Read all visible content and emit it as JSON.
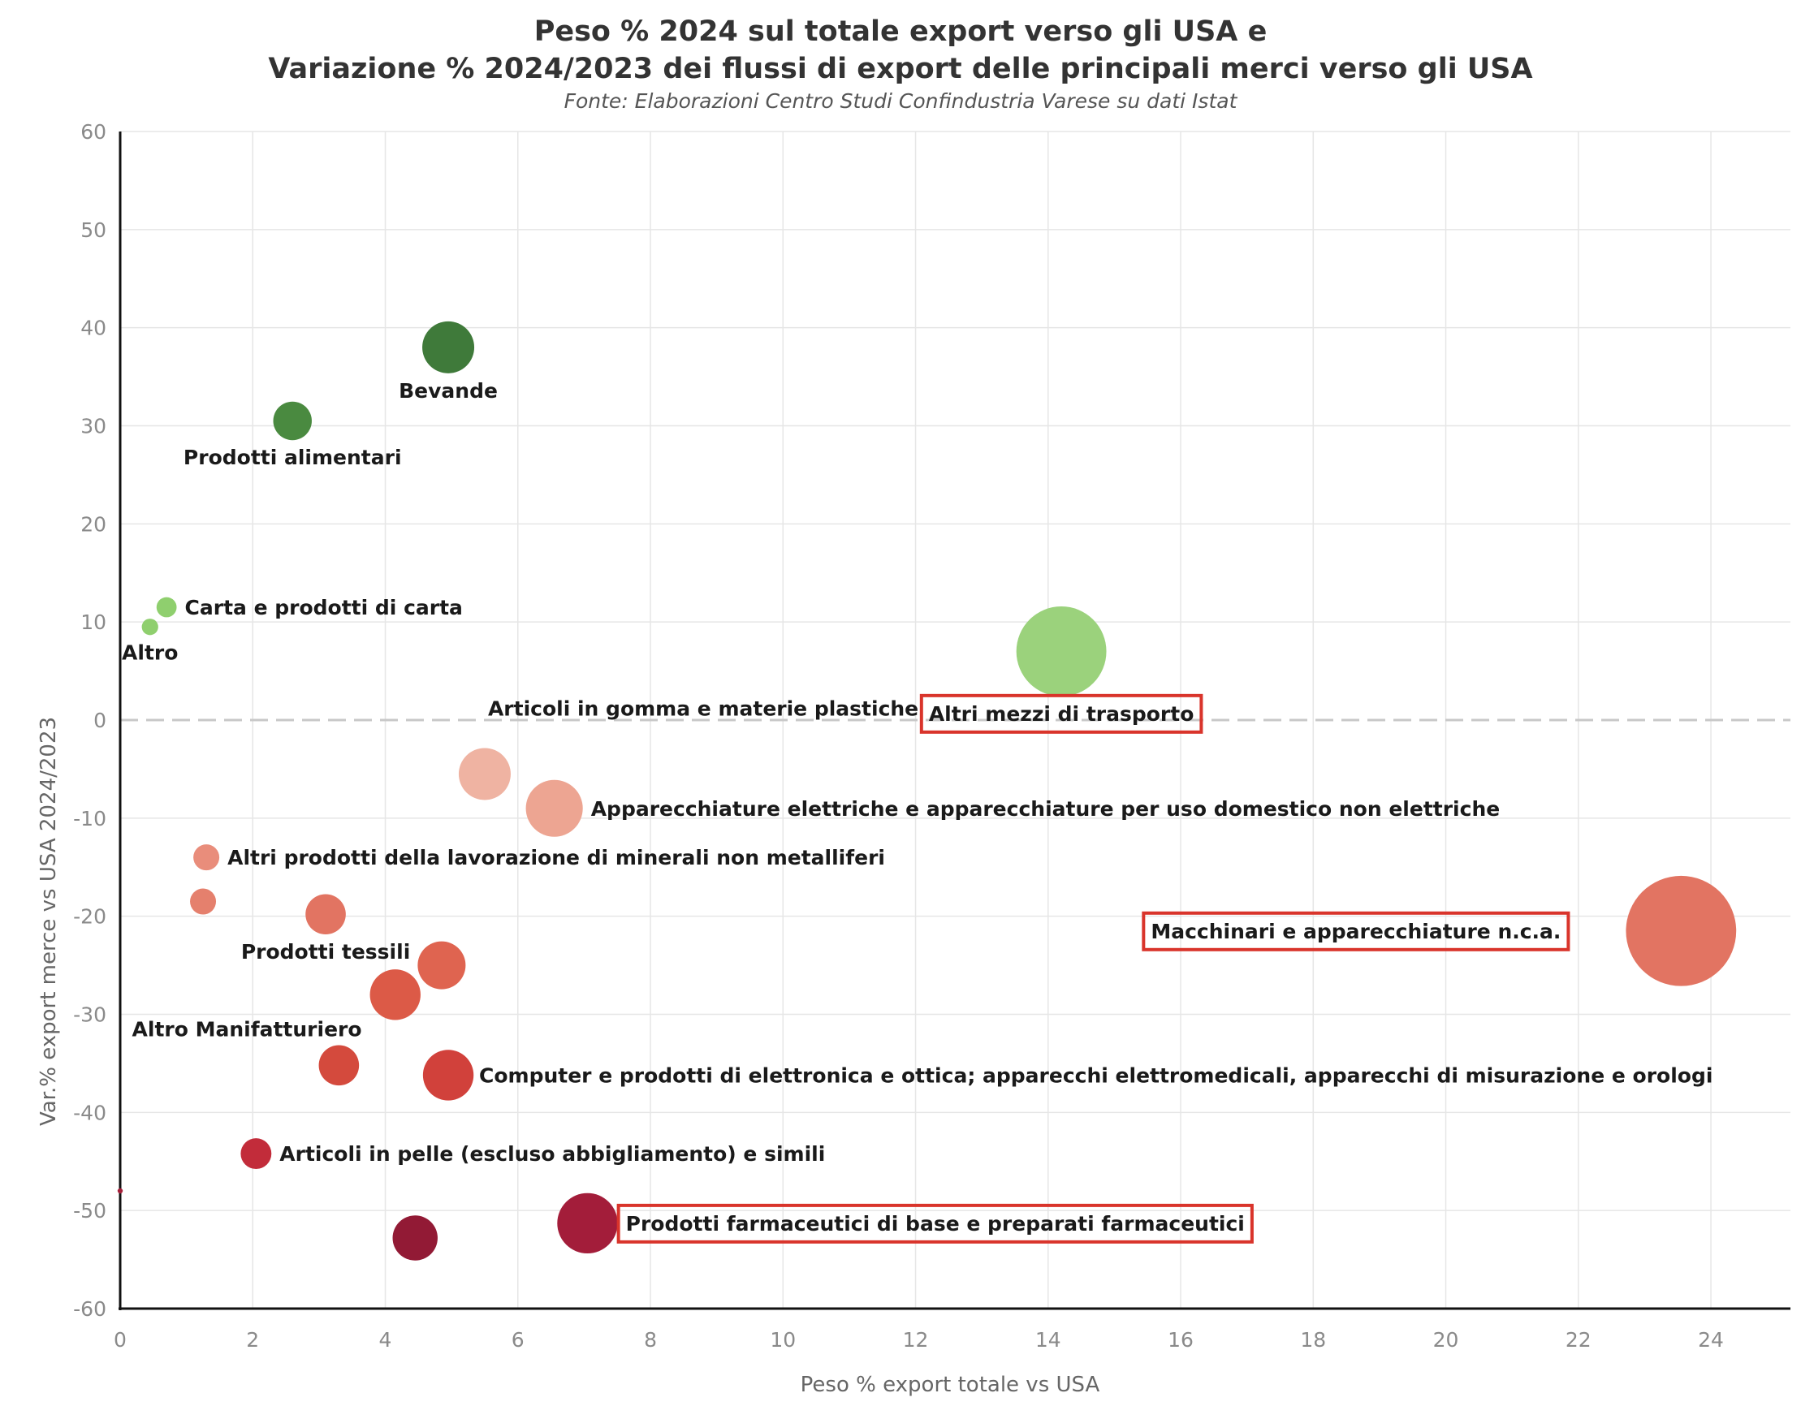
{
  "chart_data": {
    "type": "scatter",
    "title_lines": [
      "Peso % 2024 sul totale export verso gli USA e",
      "Variazione % 2024/2023 dei flussi di export delle principali merci verso gli USA"
    ],
    "subtitle": "Fonte: Elaborazioni Centro Studi Confindustria Varese su dati Istat",
    "xlabel": "Peso % export totale vs USA",
    "ylabel": "Var.% export merce vs USA 2024/2023",
    "xlim": [
      0,
      25.2
    ],
    "ylim": [
      -60,
      60
    ],
    "xticks": [
      "0",
      "2",
      "4",
      "6",
      "8",
      "10",
      "12",
      "14",
      "16",
      "18",
      "20",
      "22",
      "24"
    ],
    "yticks": [
      "60",
      "50",
      "40",
      "30",
      "20",
      "10",
      "0",
      "-10",
      "-20",
      "-30",
      "-40",
      "-50",
      "-60"
    ],
    "grid": true,
    "reference_line_y": 0,
    "points": [
      {
        "label": "Bevande",
        "x": 4.95,
        "y": 38.0,
        "size": 1.0,
        "color": "#3f7a3a",
        "label_pos": "below"
      },
      {
        "label": "Prodotti alimentari",
        "x": 2.6,
        "y": 30.5,
        "size": 0.55,
        "color": "#4a8a40",
        "label_pos": "below"
      },
      {
        "label": "Carta e prodotti di carta",
        "x": 0.7,
        "y": 11.5,
        "size": 0.15,
        "color": "#8fcf6e",
        "label_pos": "right"
      },
      {
        "label": "Altro",
        "x": 0.45,
        "y": 9.5,
        "size": 0.1,
        "color": "#8fcf6e",
        "label_pos": "below"
      },
      {
        "label": "Altri mezzi di trasporto",
        "x": 14.2,
        "y": 7.0,
        "size": 3.0,
        "color": "#9bd27c",
        "label_pos": "below",
        "highlight": true
      },
      {
        "label": "Articoli in gomma e materie plastiche",
        "x": 5.5,
        "y": -5.5,
        "size": 1.0,
        "color": "#efb3a2",
        "label_pos": "above-right"
      },
      {
        "label": "Apparecchiature elettriche e apparecchiature per uso domestico non elettriche",
        "x": 6.55,
        "y": -9.0,
        "size": 1.2,
        "color": "#eda592",
        "label_pos": "right"
      },
      {
        "label": "Altri prodotti della lavorazione di minerali non metalliferi",
        "x": 1.3,
        "y": -14.0,
        "size": 0.25,
        "color": "#e98d7b",
        "label_pos": "right"
      },
      {
        "label": "",
        "x": 1.25,
        "y": -18.5,
        "size": 0.25,
        "color": "#e5806d"
      },
      {
        "label": "Prodotti tessili",
        "x": 3.1,
        "y": -19.8,
        "size": 0.6,
        "color": "#e27462",
        "label_pos": "below"
      },
      {
        "label": "",
        "x": 4.85,
        "y": -25.0,
        "size": 0.85,
        "color": "#df6450"
      },
      {
        "label": "Altro Manifatturiero",
        "x": 4.15,
        "y": -28.0,
        "size": 0.95,
        "color": "#dc5a47",
        "label_pos": "below-left"
      },
      {
        "label": "",
        "x": 3.3,
        "y": -35.2,
        "size": 0.6,
        "color": "#d44a3d"
      },
      {
        "label": "Computer e prodotti di elettronica e ottica; apparecchi elettromedicali, apparecchi di misurazione e orologi",
        "x": 4.95,
        "y": -36.2,
        "size": 0.95,
        "color": "#d1413b",
        "label_pos": "right"
      },
      {
        "label": "Articoli in pelle (escluso abbigliamento) e simili",
        "x": 2.05,
        "y": -44.2,
        "size": 0.35,
        "color": "#c22c3a",
        "label_pos": "right"
      },
      {
        "label": "",
        "x": 0.0,
        "y": -48.0,
        "size": 0.01,
        "color": "#a5203a"
      },
      {
        "label": "Prodotti farmaceutici di base e preparati farmaceutici",
        "x": 7.05,
        "y": -51.3,
        "size": 1.35,
        "color": "#a31d3a",
        "label_pos": "right",
        "highlight": true
      },
      {
        "label": "",
        "x": 4.45,
        "y": -52.8,
        "size": 0.75,
        "color": "#921a35"
      },
      {
        "label": "Macchinari e apparecchiature n.c.a.",
        "x": 23.55,
        "y": -21.5,
        "size": 4.5,
        "color": "#e27462",
        "label_pos": "left",
        "highlight": true
      }
    ]
  }
}
